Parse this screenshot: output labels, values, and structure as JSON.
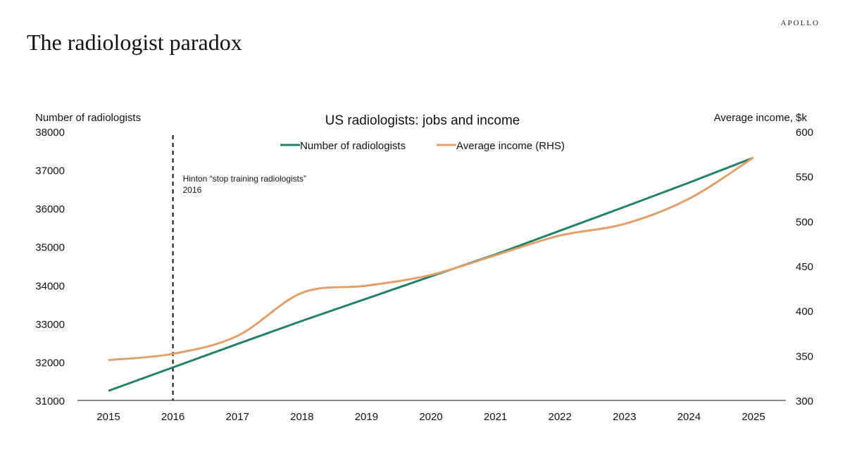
{
  "header": {
    "brand": "APOLLO",
    "title": "The radiologist paradox"
  },
  "colors": {
    "jobs": "#21806a",
    "income": "#e0a06a",
    "axis": "#111111"
  },
  "chart_data": {
    "type": "line",
    "title": "US radiologists: jobs and income",
    "ylabel_left": "Number of radiologists",
    "ylabel_right": "Average income, $k",
    "x": [
      2015,
      2016,
      2017,
      2018,
      2019,
      2020,
      2021,
      2022,
      2023,
      2024,
      2025
    ],
    "x_tick_labels": [
      "2015",
      "2016",
      "2017",
      "2018",
      "2019",
      "2020",
      "2021",
      "2022",
      "2023",
      "2024",
      "2025"
    ],
    "ylim_left": [
      31000,
      38000
    ],
    "yticks_left": [
      "31000",
      "32000",
      "33000",
      "34000",
      "35000",
      "36000",
      "37000",
      "38000"
    ],
    "ylim_right": [
      300,
      600
    ],
    "yticks_right": [
      "300",
      "350",
      "400",
      "450",
      "500",
      "550",
      "600"
    ],
    "legend_position": "top-center",
    "series": [
      {
        "name": "Number of radiologists",
        "axis": "left",
        "values": [
          31250,
          31860,
          32470,
          33070,
          33650,
          34230,
          34800,
          35420,
          36040,
          36670,
          37320
        ]
      },
      {
        "name": "Average income (RHS)",
        "axis": "right",
        "smooth": true,
        "values": [
          345,
          352,
          372,
          420,
          428,
          440,
          462,
          484,
          497,
          525,
          571
        ]
      }
    ],
    "annotation": {
      "x": 2016,
      "line1": "Hinton “stop training radiologists”",
      "line2": "2016"
    },
    "grid": false
  }
}
